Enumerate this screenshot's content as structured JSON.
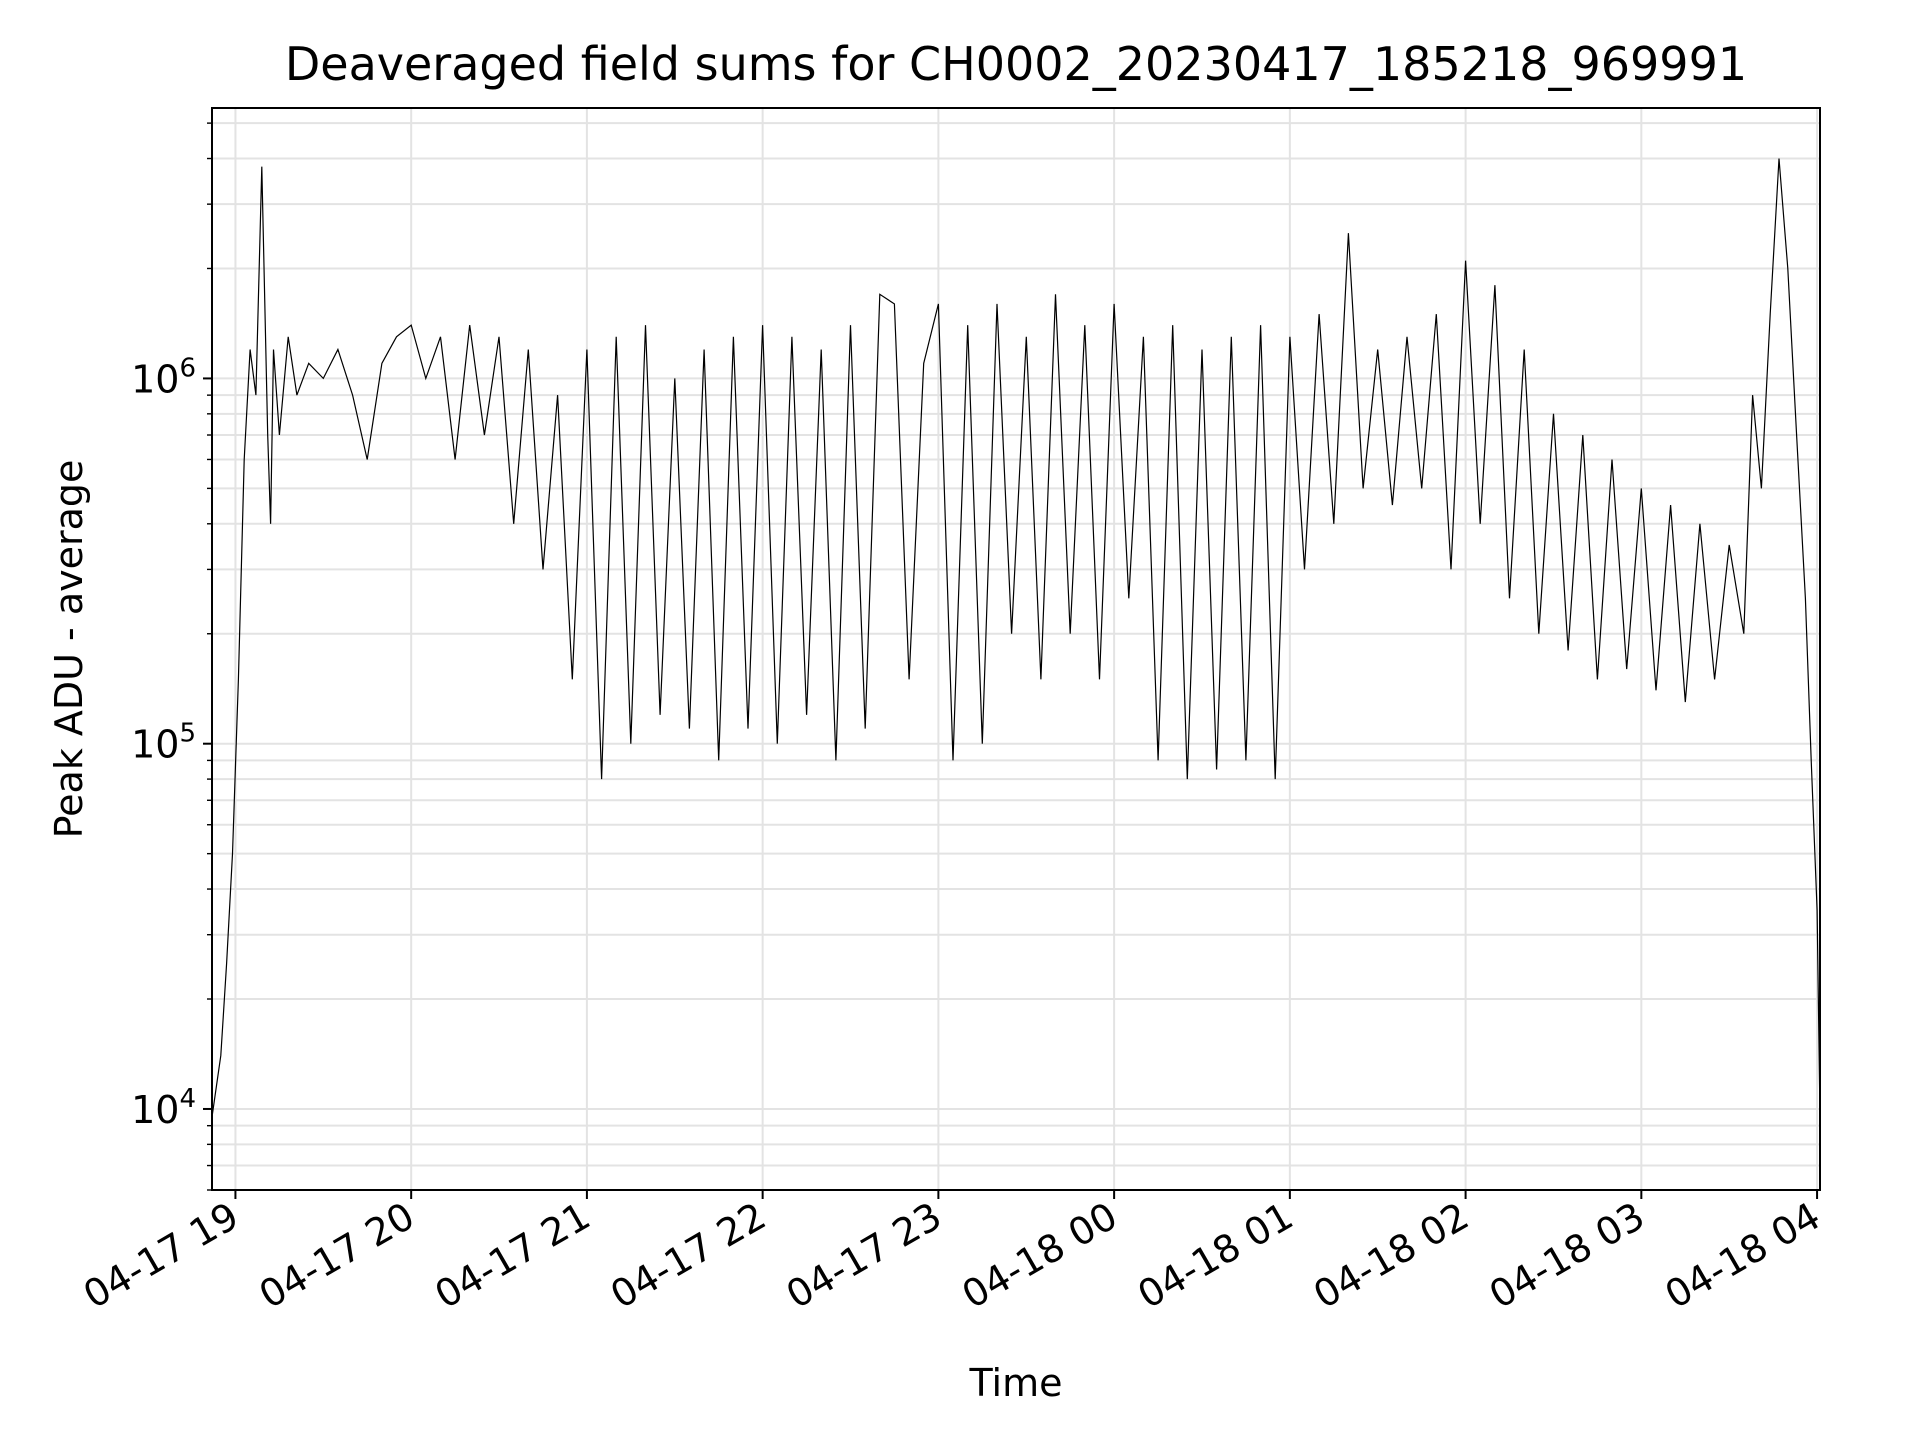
{
  "chart_data": {
    "type": "line",
    "title": "Deaveraged field sums for CH0002_20230417_185218_969991",
    "xlabel": "Time",
    "ylabel": "Peak ADU - average",
    "yscale": "log",
    "ylim": [
      6000,
      5500000
    ],
    "xlim": [
      "2023-04-17 18:52",
      "2023-04-18 04:01"
    ],
    "grid": true,
    "line_color": "#000000",
    "x_tick_labels": [
      "04-17 19",
      "04-17 20",
      "04-17 21",
      "04-17 22",
      "04-17 23",
      "04-18 00",
      "04-18 01",
      "04-18 02",
      "04-18 03",
      "04-18 04"
    ],
    "x_ticks": [
      "2023-04-17 19:00",
      "2023-04-17 20:00",
      "2023-04-17 21:00",
      "2023-04-17 22:00",
      "2023-04-17 23:00",
      "2023-04-18 00:00",
      "2023-04-18 01:00",
      "2023-04-18 02:00",
      "2023-04-18 03:00",
      "2023-04-18 04:00"
    ],
    "y_ticks": [
      {
        "value": 10000,
        "base": "10",
        "exp": "4"
      },
      {
        "value": 100000,
        "base": "10",
        "exp": "5"
      },
      {
        "value": 1000000,
        "base": "10",
        "exp": "6"
      }
    ],
    "series": [
      {
        "x": [
          "2023-04-17 18:52",
          "2023-04-17 18:55",
          "2023-04-17 18:57",
          "2023-04-17 18:59",
          "2023-04-17 19:01",
          "2023-04-17 19:03",
          "2023-04-17 19:05",
          "2023-04-17 19:07",
          "2023-04-17 19:09",
          "2023-04-17 19:11",
          "2023-04-17 19:12",
          "2023-04-17 19:13",
          "2023-04-17 19:15",
          "2023-04-17 19:18",
          "2023-04-17 19:21",
          "2023-04-17 19:25",
          "2023-04-17 19:30",
          "2023-04-17 19:35",
          "2023-04-17 19:40",
          "2023-04-17 19:45",
          "2023-04-17 19:50",
          "2023-04-17 19:55",
          "2023-04-17 20:00",
          "2023-04-17 20:05",
          "2023-04-17 20:10",
          "2023-04-17 20:15",
          "2023-04-17 20:20",
          "2023-04-17 20:25",
          "2023-04-17 20:30",
          "2023-04-17 20:35",
          "2023-04-17 20:40",
          "2023-04-17 20:45",
          "2023-04-17 20:50",
          "2023-04-17 20:55",
          "2023-04-17 21:00",
          "2023-04-17 21:05",
          "2023-04-17 21:10",
          "2023-04-17 21:15",
          "2023-04-17 21:20",
          "2023-04-17 21:25",
          "2023-04-17 21:30",
          "2023-04-17 21:35",
          "2023-04-17 21:40",
          "2023-04-17 21:45",
          "2023-04-17 21:50",
          "2023-04-17 21:55",
          "2023-04-17 22:00",
          "2023-04-17 22:05",
          "2023-04-17 22:10",
          "2023-04-17 22:15",
          "2023-04-17 22:20",
          "2023-04-17 22:25",
          "2023-04-17 22:30",
          "2023-04-17 22:35",
          "2023-04-17 22:40",
          "2023-04-17 22:45",
          "2023-04-17 22:50",
          "2023-04-17 22:55",
          "2023-04-17 23:00",
          "2023-04-17 23:05",
          "2023-04-17 23:10",
          "2023-04-17 23:15",
          "2023-04-17 23:20",
          "2023-04-17 23:25",
          "2023-04-17 23:30",
          "2023-04-17 23:35",
          "2023-04-17 23:40",
          "2023-04-17 23:45",
          "2023-04-17 23:50",
          "2023-04-17 23:55",
          "2023-04-18 00:00",
          "2023-04-18 00:05",
          "2023-04-18 00:10",
          "2023-04-18 00:15",
          "2023-04-18 00:20",
          "2023-04-18 00:25",
          "2023-04-18 00:30",
          "2023-04-18 00:35",
          "2023-04-18 00:40",
          "2023-04-18 00:45",
          "2023-04-18 00:50",
          "2023-04-18 00:55",
          "2023-04-18 01:00",
          "2023-04-18 01:05",
          "2023-04-18 01:10",
          "2023-04-18 01:15",
          "2023-04-18 01:20",
          "2023-04-18 01:25",
          "2023-04-18 01:30",
          "2023-04-18 01:35",
          "2023-04-18 01:40",
          "2023-04-18 01:45",
          "2023-04-18 01:50",
          "2023-04-18 01:55",
          "2023-04-18 02:00",
          "2023-04-18 02:05",
          "2023-04-18 02:10",
          "2023-04-18 02:15",
          "2023-04-18 02:20",
          "2023-04-18 02:25",
          "2023-04-18 02:30",
          "2023-04-18 02:35",
          "2023-04-18 02:40",
          "2023-04-18 02:45",
          "2023-04-18 02:50",
          "2023-04-18 02:55",
          "2023-04-18 03:00",
          "2023-04-18 03:05",
          "2023-04-18 03:10",
          "2023-04-18 03:15",
          "2023-04-18 03:20",
          "2023-04-18 03:25",
          "2023-04-18 03:30",
          "2023-04-18 03:35",
          "2023-04-18 03:38",
          "2023-04-18 03:41",
          "2023-04-18 03:44",
          "2023-04-18 03:47",
          "2023-04-18 03:50",
          "2023-04-18 03:53",
          "2023-04-18 03:56",
          "2023-04-18 03:58",
          "2023-04-18 04:00",
          "2023-04-18 04:01"
        ],
        "values": [
          9500,
          14000,
          25000,
          50000,
          150000,
          600000,
          1200000,
          900000,
          3800000,
          700000,
          400000,
          1200000,
          700000,
          1300000,
          900000,
          1100000,
          1000000,
          1200000,
          900000,
          600000,
          1100000,
          1300000,
          1400000,
          1000000,
          1300000,
          600000,
          1400000,
          700000,
          1300000,
          400000,
          1200000,
          300000,
          900000,
          150000,
          1200000,
          80000,
          1300000,
          100000,
          1400000,
          120000,
          1000000,
          110000,
          1200000,
          90000,
          1300000,
          110000,
          1400000,
          100000,
          1300000,
          120000,
          1200000,
          90000,
          1400000,
          110000,
          1700000,
          1600000,
          150000,
          1100000,
          1600000,
          90000,
          1400000,
          100000,
          1600000,
          200000,
          1300000,
          150000,
          1700000,
          200000,
          1400000,
          150000,
          1600000,
          250000,
          1300000,
          90000,
          1400000,
          80000,
          1200000,
          85000,
          1300000,
          90000,
          1400000,
          80000,
          1300000,
          300000,
          1500000,
          400000,
          2500000,
          500000,
          1200000,
          450000,
          1300000,
          500000,
          1500000,
          300000,
          2100000,
          400000,
          1800000,
          250000,
          1200000,
          200000,
          800000,
          180000,
          700000,
          150000,
          600000,
          160000,
          500000,
          140000,
          450000,
          130000,
          400000,
          150000,
          350000,
          200000,
          900000,
          500000,
          1500000,
          4000000,
          2000000,
          700000,
          250000,
          90000,
          35000,
          9500
        ]
      }
    ]
  }
}
